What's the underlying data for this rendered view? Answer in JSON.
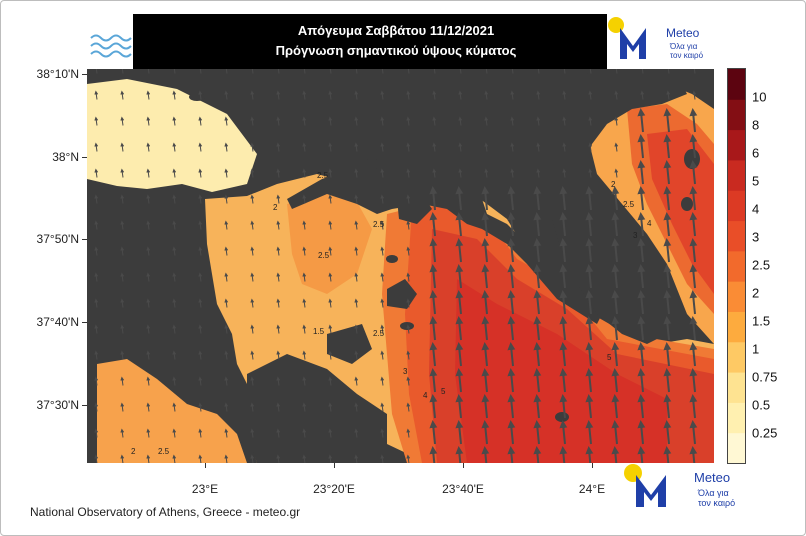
{
  "title": {
    "line1": "Απόγευμα Σαββάτου 11/12/2021",
    "line2": "Πρόγνωση σημαντικού ύψους κύματος"
  },
  "logo": {
    "brand": "Meteo",
    "tagline_line1": "Όλα για",
    "tagline_line2": "τον καιρό",
    "brand_color": "#1f3fa8",
    "sun_color": "#f5d100"
  },
  "axes": {
    "latitude_labels": [
      "38°10'N",
      "38°N",
      "37°50'N",
      "37°40'N",
      "37°30'N"
    ],
    "longitude_labels": [
      "23°E",
      "23°20'E",
      "23°40'E",
      "24°E"
    ]
  },
  "legend": {
    "labels": [
      "10",
      "8",
      "6",
      "5",
      "4",
      "3",
      "2.5",
      "2",
      "1.5",
      "1",
      "0.75",
      "0.5",
      "0.25"
    ],
    "colors": [
      "#fff8d4",
      "#fff0b0",
      "#fee391",
      "#fec964",
      "#fdab3e",
      "#fa8c35",
      "#f26a2c",
      "#e94e28",
      "#dc3a24",
      "#c92a20",
      "#a8181a",
      "#830e14",
      "#5c0410"
    ]
  },
  "contour_labels": [
    "2.5",
    "2",
    "2.5",
    "2.5",
    "1.5",
    "2.5",
    "3",
    "4",
    "5",
    "5",
    "2",
    "2.5",
    "3",
    "4",
    "2",
    "2.5"
  ],
  "colors": {
    "land": "#3c3c3c",
    "header_bg": "#000000"
  },
  "credit": "National Observatory of Athens, Greece - meteo.gr"
}
